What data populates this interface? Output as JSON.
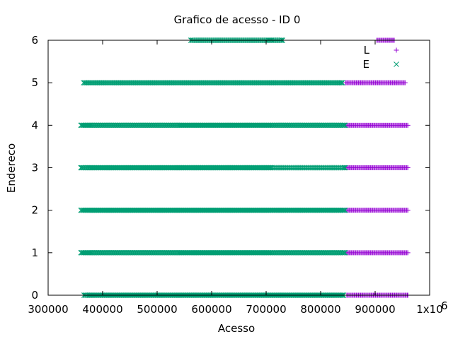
{
  "chart_data": {
    "type": "scatter",
    "title": "Grafico de acesso - ID 0",
    "xlabel": "Acesso",
    "ylabel": "Endereco",
    "xlim": [
      300000,
      1000000
    ],
    "ylim": [
      0,
      6
    ],
    "x_ticks": [
      {
        "value": 300000,
        "label": "300000"
      },
      {
        "value": 400000,
        "label": "400000"
      },
      {
        "value": 500000,
        "label": "500000"
      },
      {
        "value": 600000,
        "label": "600000"
      },
      {
        "value": 700000,
        "label": "700000"
      },
      {
        "value": 800000,
        "label": "800000"
      },
      {
        "value": 900000,
        "label": "900000"
      },
      {
        "value": 1000000,
        "label": "1x10"
      }
    ],
    "x_multiplier_exponent": "6",
    "y_ticks": [
      {
        "value": 0,
        "label": "0"
      },
      {
        "value": 1,
        "label": "1"
      },
      {
        "value": 2,
        "label": "2"
      },
      {
        "value": 3,
        "label": "3"
      },
      {
        "value": 4,
        "label": "4"
      },
      {
        "value": 5,
        "label": "5"
      },
      {
        "value": 6,
        "label": "6"
      }
    ],
    "grid": false,
    "legend_position": "top-right",
    "series": [
      {
        "name": "L",
        "marker": "plus",
        "color": "#9400d3",
        "segments": [
          {
            "y": 0,
            "x_start": 848000,
            "x_end": 960000
          },
          {
            "y": 1,
            "x_start": 845000,
            "x_end": 960000
          },
          {
            "y": 2,
            "x_start": 845000,
            "x_end": 960000
          },
          {
            "y": 3,
            "x_start": 845000,
            "x_end": 960000
          },
          {
            "y": 4,
            "x_start": 845000,
            "x_end": 960000
          },
          {
            "y": 5,
            "x_start": 846000,
            "x_end": 955000
          },
          {
            "y": 6,
            "x_start": 903000,
            "x_end": 935000
          }
        ]
      },
      {
        "name": "E",
        "marker": "cross",
        "color": "#009e73",
        "segments": [
          {
            "y": 0,
            "x_start": 366000,
            "x_end": 842000
          },
          {
            "y": 1,
            "x_start": 360000,
            "x_end": 845000
          },
          {
            "y": 2,
            "x_start": 360000,
            "x_end": 845000
          },
          {
            "y": 3,
            "x_start": 360000,
            "x_end": 845000
          },
          {
            "y": 4,
            "x_start": 360000,
            "x_end": 845000
          },
          {
            "y": 5,
            "x_start": 365000,
            "x_end": 840000
          },
          {
            "y": 6,
            "x_start": 562000,
            "x_end": 730000
          }
        ]
      }
    ]
  }
}
